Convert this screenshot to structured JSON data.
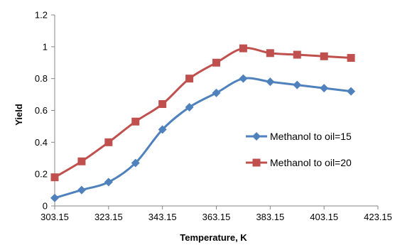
{
  "chart_data": {
    "type": "line",
    "title": "",
    "xlabel": "Temperature, K",
    "ylabel": "Yield",
    "xlim": [
      303.15,
      423.15
    ],
    "ylim": [
      0,
      1.2
    ],
    "x_ticks": [
      "303.15",
      "323.15",
      "343.15",
      "363.15",
      "383.15",
      "403.15",
      "423.15"
    ],
    "y_ticks": [
      "0",
      "0.2",
      "0.4",
      "0.6",
      "0.8",
      "1",
      "1.2"
    ],
    "grid": false,
    "smooth": true,
    "legend_position": "right",
    "series": [
      {
        "name": "Methanol to oil=15",
        "color": "#4F81BD",
        "marker": "diamond",
        "x": [
          303.15,
          313.15,
          323.15,
          333.15,
          343.15,
          353.15,
          363.15,
          373.15,
          383.15,
          393.15,
          403.15,
          413.15
        ],
        "y": [
          0.05,
          0.1,
          0.15,
          0.27,
          0.48,
          0.62,
          0.71,
          0.8,
          0.78,
          0.76,
          0.74,
          0.72
        ]
      },
      {
        "name": "Methanol to oil=20",
        "color": "#C0504D",
        "marker": "square",
        "x": [
          303.15,
          313.15,
          323.15,
          333.15,
          343.15,
          353.15,
          363.15,
          373.15,
          383.15,
          393.15,
          403.15,
          413.15
        ],
        "y": [
          0.18,
          0.28,
          0.4,
          0.53,
          0.64,
          0.8,
          0.9,
          0.99,
          0.96,
          0.95,
          0.94,
          0.93
        ]
      }
    ]
  }
}
